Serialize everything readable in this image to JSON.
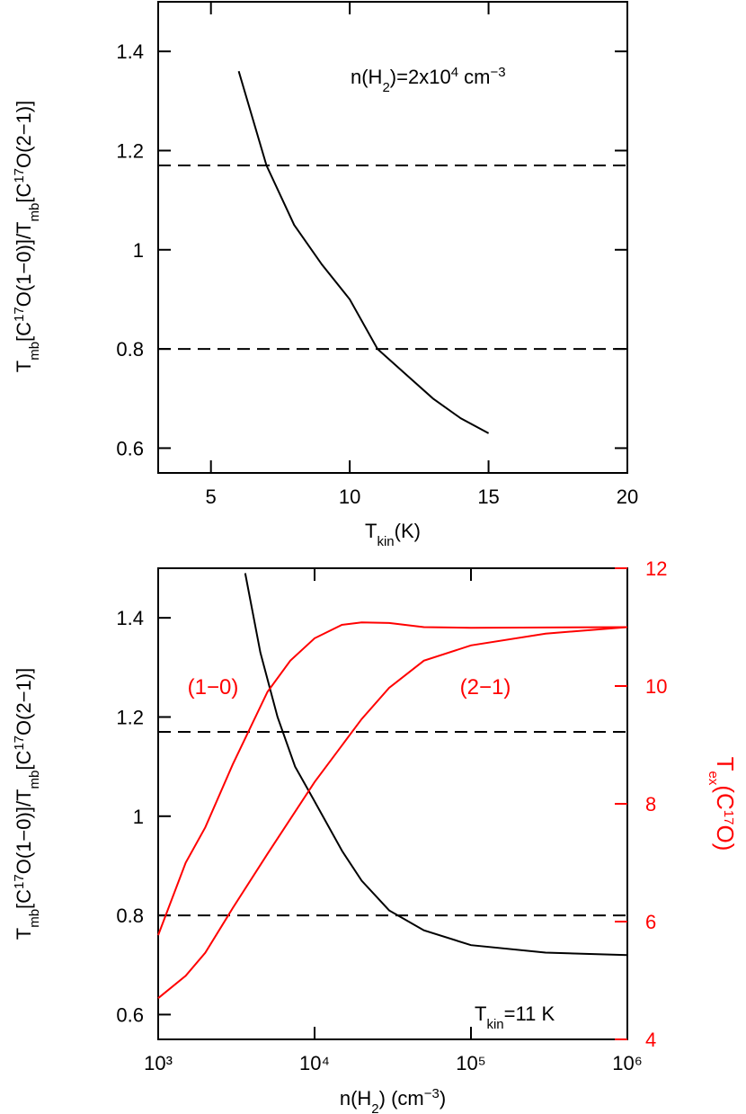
{
  "chart_data": [
    {
      "type": "line",
      "xlabel": [
        "T",
        "kin",
        "(K)"
      ],
      "ylabel": [
        "T",
        "mb",
        "[C",
        "17",
        "O(1−0)]/T",
        "mb",
        "[C",
        "17",
        "O(2−1)]"
      ],
      "annotation": [
        "n(H",
        "2",
        ")=2x10",
        "4",
        " cm",
        "−3"
      ],
      "xlim": [
        3.1,
        20
      ],
      "xticks": [
        5,
        10,
        15,
        20
      ],
      "ylim": [
        0.55,
        1.5
      ],
      "yticks": [
        0.6,
        0.8,
        1,
        1.2,
        1.4
      ],
      "hlines": [
        1.17,
        0.8
      ],
      "series": [
        {
          "color": "#000000",
          "x": [
            6,
            7,
            8,
            9,
            10,
            11,
            12,
            13,
            14,
            15
          ],
          "values": [
            1.36,
            1.17,
            1.05,
            0.97,
            0.9,
            0.8,
            0.75,
            0.7,
            0.66,
            0.63
          ]
        }
      ]
    },
    {
      "type": "line",
      "xscale": "log",
      "xlabel": [
        "n(H",
        "2",
        ") (cm",
        "−3",
        ")"
      ],
      "ylabel": [
        "T",
        "mb",
        "[C",
        "17",
        "O(1−0)]/T",
        "mb",
        "[C",
        "17",
        "O(2−1)]"
      ],
      "y2label": [
        "T",
        "ex",
        "(C",
        "17",
        "O)"
      ],
      "annotation": [
        "T",
        "kin",
        "=11 K"
      ],
      "xlim": [
        1000,
        1000000
      ],
      "xticks": [
        {
          "value": 1000,
          "label": "10³"
        },
        {
          "value": 10000,
          "label": "10⁴"
        },
        {
          "value": 100000,
          "label": "10⁵"
        },
        {
          "value": 1000000,
          "label": "10⁶"
        }
      ],
      "ylim": [
        0.55,
        1.5
      ],
      "yticks": [
        0.6,
        0.8,
        1,
        1.2,
        1.4
      ],
      "y2lim": [
        4,
        12
      ],
      "y2ticks": [
        4,
        6,
        8,
        10,
        12
      ],
      "y2color": "#ff0000",
      "hlines": [
        1.17,
        0.8
      ],
      "series": [
        {
          "color": "#000000",
          "x": [
            3600,
            4500,
            5800,
            7500,
            10000,
            15000,
            20000,
            30000,
            50000,
            100000,
            300000,
            1000000
          ],
          "values": [
            1.49,
            1.33,
            1.2,
            1.1,
            1.03,
            0.93,
            0.87,
            0.81,
            0.77,
            0.74,
            0.725,
            0.72
          ]
        },
        {
          "name": "(1−0)",
          "color": "#ff0000",
          "axis": "y2",
          "x": [
            1000,
            1500,
            2000,
            3000,
            5000,
            7000,
            10000,
            15000,
            20000,
            30000,
            50000,
            100000,
            1000000
          ],
          "values": [
            5.77,
            7.0,
            7.6,
            8.67,
            9.9,
            10.43,
            10.81,
            11.04,
            11.08,
            11.07,
            11.0,
            10.99,
            11.0
          ]
        },
        {
          "name": "(2−1)",
          "color": "#ff0000",
          "axis": "y2",
          "x": [
            1000,
            1500,
            2000,
            3000,
            5000,
            10000,
            20000,
            30000,
            50000,
            100000,
            300000,
            1000000
          ],
          "values": [
            4.7,
            5.08,
            5.47,
            6.23,
            7.15,
            8.37,
            9.44,
            9.97,
            10.43,
            10.69,
            10.89,
            11.0
          ]
        }
      ]
    }
  ]
}
